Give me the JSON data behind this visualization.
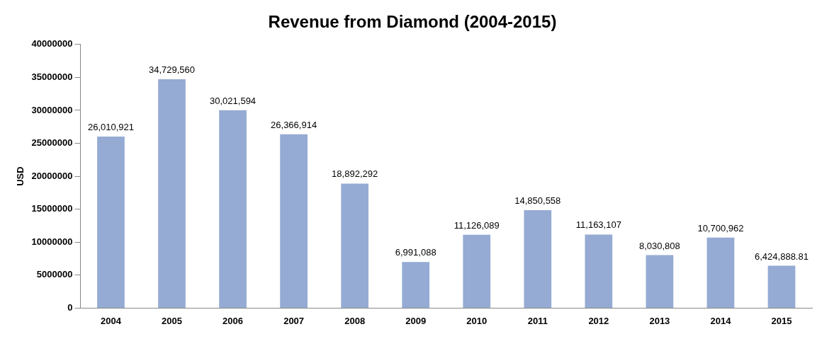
{
  "chart_data": {
    "type": "bar",
    "title": "Revenue from Diamond (2004-2015)",
    "ylabel": "USD",
    "categories": [
      "2004",
      "2005",
      "2006",
      "2007",
      "2008",
      "2009",
      "2010",
      "2011",
      "2012",
      "2013",
      "2014",
      "2015"
    ],
    "values": [
      26010921,
      34729560,
      30021594,
      26366914,
      18892292,
      6991088,
      11126089,
      14850558,
      11163107,
      8030808,
      10700962,
      6424888.81
    ],
    "value_labels": [
      "26,010,921",
      "34,729,560",
      "30,021,594",
      "26,366,914",
      "18,892,292",
      "6,991,088",
      "11,126,089",
      "14,850,558",
      "11,163,107",
      "8,030,808",
      "10,700,962",
      "6,424,888.81"
    ],
    "color": "#95abd3",
    "ylim": [
      0,
      40000000
    ],
    "yticks": [
      0,
      5000000,
      10000000,
      15000000,
      20000000,
      25000000,
      30000000,
      35000000,
      40000000
    ],
    "grid": false,
    "legend": false
  }
}
